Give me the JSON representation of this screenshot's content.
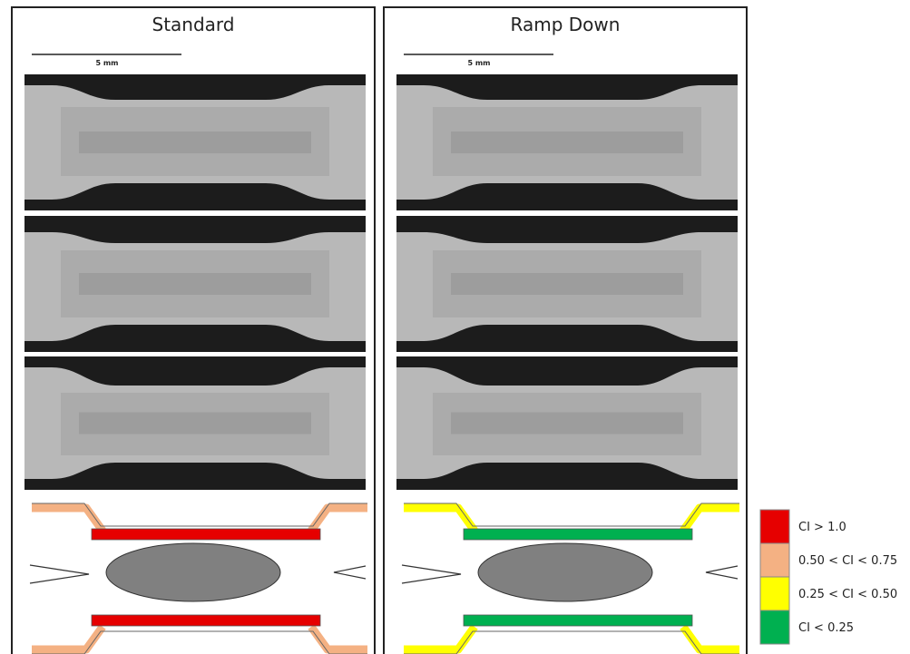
{
  "panels": [
    {
      "title": "Standard",
      "scale_label": "5 mm"
    },
    {
      "title": "Ramp Down",
      "scale_label": "5 mm"
    }
  ],
  "legend": [
    {
      "label": "CI > 1.0",
      "color": "#e60000"
    },
    {
      "label": "0.50 < CI < 0.75",
      "color": "#f4b183"
    },
    {
      "label": "0.25 < CI < 0.50",
      "color": "#ffff00"
    },
    {
      "label": "CI < 0.25",
      "color": "#00b050"
    }
  ]
}
